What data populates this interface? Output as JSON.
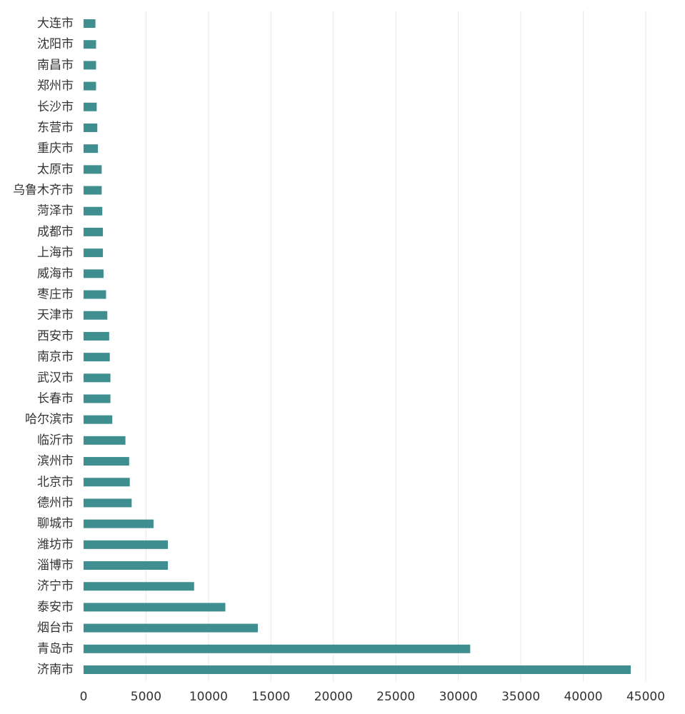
{
  "colors": {
    "bar": "#3f8f91",
    "grid": "#e9e9e9",
    "text": "#333333"
  },
  "chart_data": {
    "type": "bar",
    "orientation": "horizontal",
    "title": "",
    "xlabel": "",
    "ylabel": "",
    "xlim": [
      0,
      45000
    ],
    "xticks": [
      0,
      5000,
      10000,
      15000,
      20000,
      25000,
      30000,
      35000,
      40000,
      45000
    ],
    "grid": "vertical",
    "categories": [
      "大连市",
      "沈阳市",
      "南昌市",
      "郑州市",
      "长沙市",
      "东营市",
      "重庆市",
      "太原市",
      "乌鲁木齐市",
      "菏泽市",
      "成都市",
      "上海市",
      "威海市",
      "枣庄市",
      "天津市",
      "西安市",
      "南京市",
      "武汉市",
      "长春市",
      "哈尔滨市",
      "临沂市",
      "滨州市",
      "北京市",
      "德州市",
      "聊城市",
      "潍坊市",
      "淄博市",
      "济宁市",
      "泰安市",
      "烟台市",
      "青岛市",
      "济南市"
    ],
    "values": [
      950,
      1000,
      1000,
      1000,
      1050,
      1100,
      1150,
      1450,
      1450,
      1500,
      1550,
      1550,
      1600,
      1800,
      1900,
      2050,
      2100,
      2150,
      2150,
      2300,
      3350,
      3650,
      3700,
      3850,
      5600,
      6750,
      6750,
      8850,
      11350,
      13950,
      30950,
      43800
    ]
  }
}
